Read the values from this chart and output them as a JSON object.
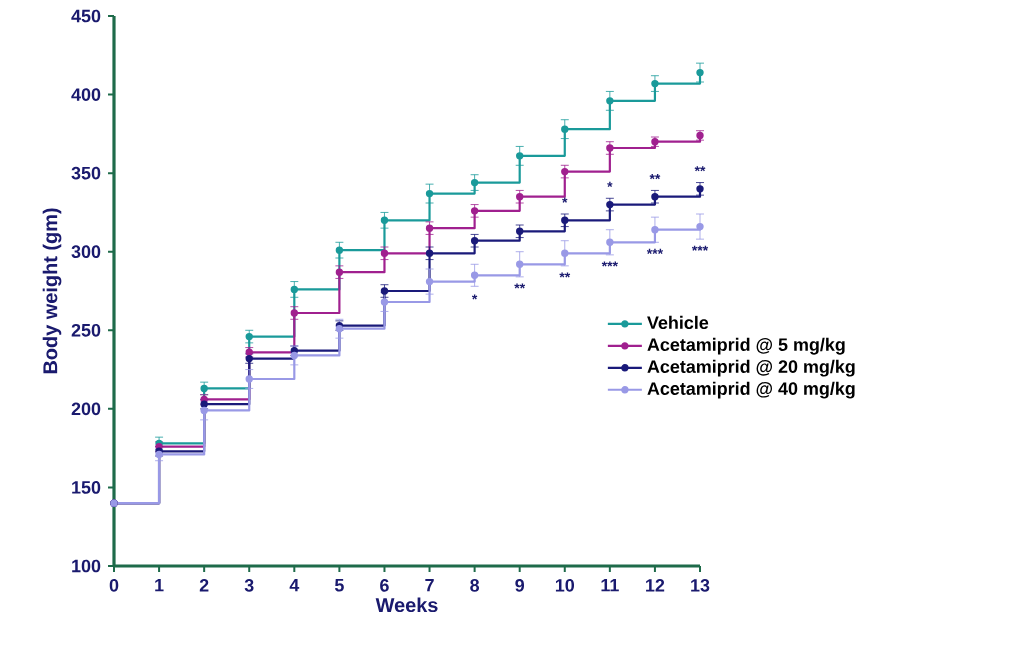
{
  "chart_data": {
    "type": "step",
    "xlabel": "Weeks",
    "ylabel": "Body weight (gm)",
    "x": [
      0,
      1,
      2,
      3,
      4,
      5,
      6,
      7,
      8,
      9,
      10,
      11,
      12,
      13
    ],
    "xlim": [
      0,
      13
    ],
    "xticks": [
      0,
      1,
      2,
      3,
      4,
      5,
      6,
      7,
      8,
      9,
      10,
      11,
      12,
      13
    ],
    "ylim": [
      100,
      450
    ],
    "yticks": [
      100,
      150,
      200,
      250,
      300,
      350,
      400,
      450
    ],
    "grid": false,
    "legend": "right",
    "marker": "circle",
    "series": [
      {
        "name": "Vehicle",
        "color": "#1a9a9a",
        "values": [
          140,
          178,
          213,
          246,
          276,
          301,
          320,
          337,
          344,
          361,
          378,
          396,
          407,
          414
        ],
        "errors": [
          null,
          4,
          4,
          4,
          5,
          5,
          5,
          6,
          5,
          6,
          6,
          6,
          5,
          6
        ]
      },
      {
        "name": "Acetamiprid @ 5 mg/kg",
        "color": "#a0208f",
        "values": [
          140,
          176,
          206,
          236,
          261,
          287,
          299,
          315,
          326,
          335,
          351,
          366,
          370,
          374
        ],
        "errors": [
          null,
          3,
          3,
          3,
          4,
          4,
          4,
          4,
          4,
          4,
          4,
          4,
          3,
          3
        ]
      },
      {
        "name": "Acetamiprid @ 20 mg/kg",
        "color": "#1a1a7a",
        "values": [
          140,
          173,
          203,
          232,
          237,
          253,
          275,
          299,
          307,
          313,
          320,
          330,
          335,
          340
        ],
        "errors": [
          null,
          3,
          3,
          3,
          3,
          3,
          4,
          4,
          4,
          4,
          4,
          4,
          4,
          4
        ]
      },
      {
        "name": "Acetamiprid @ 40 mg/kg",
        "color": "#9999e6",
        "values": [
          140,
          171,
          199,
          219,
          234,
          251,
          268,
          281,
          285,
          292,
          299,
          306,
          314,
          316
        ],
        "errors": [
          null,
          4,
          6,
          6,
          6,
          6,
          6,
          8,
          7,
          8,
          8,
          8,
          8,
          8
        ]
      }
    ],
    "annotations": [
      {
        "text": "*",
        "x": 8,
        "y": 285
      },
      {
        "text": "**",
        "x": 9,
        "y": 292
      },
      {
        "text": "**",
        "x": 10,
        "y": 299
      },
      {
        "text": "***",
        "x": 11,
        "y": 306
      },
      {
        "text": "***",
        "x": 12,
        "y": 314
      },
      {
        "text": "***",
        "x": 13,
        "y": 316
      },
      {
        "text": "*",
        "x": 10,
        "y": 320
      },
      {
        "text": "*",
        "x": 11,
        "y": 330
      },
      {
        "text": "**",
        "x": 12,
        "y": 335
      },
      {
        "text": "**",
        "x": 13,
        "y": 340
      }
    ]
  }
}
